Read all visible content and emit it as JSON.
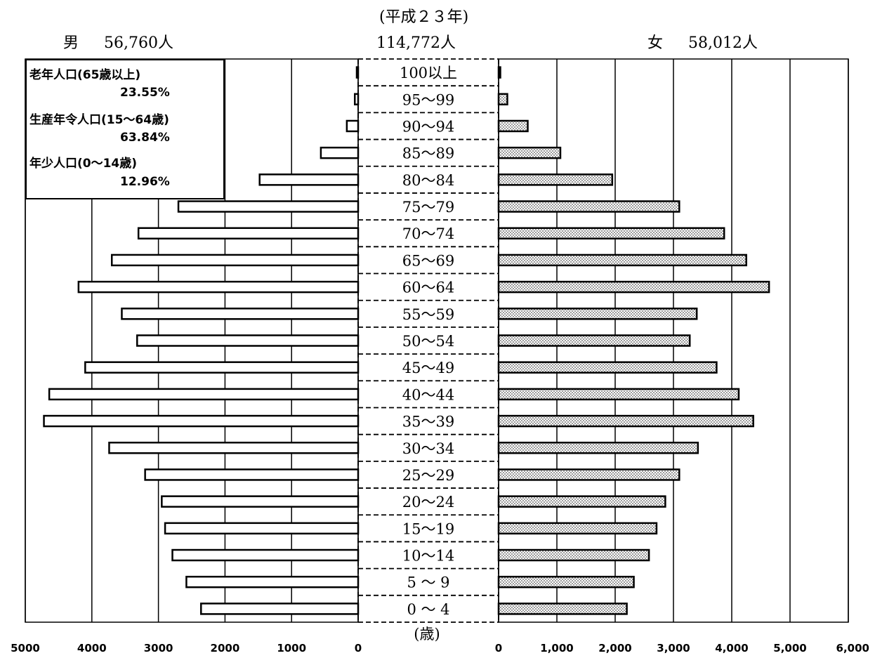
{
  "header": {
    "year": "(平成２３年)",
    "total": "114,772人",
    "male_label": "男",
    "male_total": "56,760人",
    "female_label": "女",
    "female_total": "58,012人"
  },
  "legend": {
    "items": [
      {
        "label": "老年人口(65歳以上)",
        "percent": "23.55%"
      },
      {
        "label": "生産年令人口(15～64歳)",
        "percent": "63.84%"
      },
      {
        "label": "年少人口(0～14歳)",
        "percent": "12.96%"
      }
    ]
  },
  "chart_data": {
    "type": "bar",
    "orientation": "horizontal",
    "title": "(平成２３年)",
    "subtitle": "114,772人",
    "center_axis_label": "(歳)",
    "categories": [
      "100以上",
      "95～99",
      "90～94",
      "85～89",
      "80～84",
      "75～79",
      "70～74",
      "65～69",
      "60～64",
      "55～59",
      "50～54",
      "45～49",
      "40～44",
      "35～39",
      "30～34",
      "25～29",
      "20～24",
      "15～19",
      "10～14",
      "5～9",
      "0～4"
    ],
    "category_labels": [
      "100以上",
      "95～99",
      "90～94",
      "85～89",
      "80～84",
      "75～79",
      "70～74",
      "65～69",
      "60～64",
      "55～59",
      "50～54",
      "45～49",
      "40～44",
      "35～39",
      "30～34",
      "25～29",
      "20～24",
      "15～19",
      "10～14",
      "5 ～ 9",
      "0 ～ 4"
    ],
    "series": [
      {
        "name": "男",
        "values": [
          10,
          50,
          170,
          560,
          1480,
          2700,
          3300,
          3700,
          4200,
          3550,
          3320,
          4100,
          4640,
          4720,
          3740,
          3200,
          2950,
          2900,
          2790,
          2580,
          2360
        ],
        "color": "#ffffff"
      },
      {
        "name": "女",
        "values": [
          30,
          150,
          500,
          1060,
          1950,
          3100,
          3870,
          4250,
          4640,
          3400,
          3280,
          3740,
          4120,
          4370,
          3420,
          3100,
          2860,
          2710,
          2580,
          2320,
          2200
        ],
        "color": "#d4d4d4"
      }
    ],
    "male_axis": {
      "ticks": [
        5000,
        4000,
        3000,
        2000,
        1000,
        0
      ],
      "tick_labels": [
        "5000",
        "4000",
        "3000",
        "2000",
        "1000",
        "0"
      ],
      "range": [
        0,
        5000
      ]
    },
    "female_axis": {
      "ticks": [
        0,
        1000,
        2000,
        3000,
        4000,
        5000,
        6000
      ],
      "tick_labels": [
        "0",
        "1,000",
        "2,000",
        "3,000",
        "4,000",
        "5,000",
        "6,000"
      ],
      "range": [
        0,
        6000
      ]
    },
    "grid": true
  }
}
